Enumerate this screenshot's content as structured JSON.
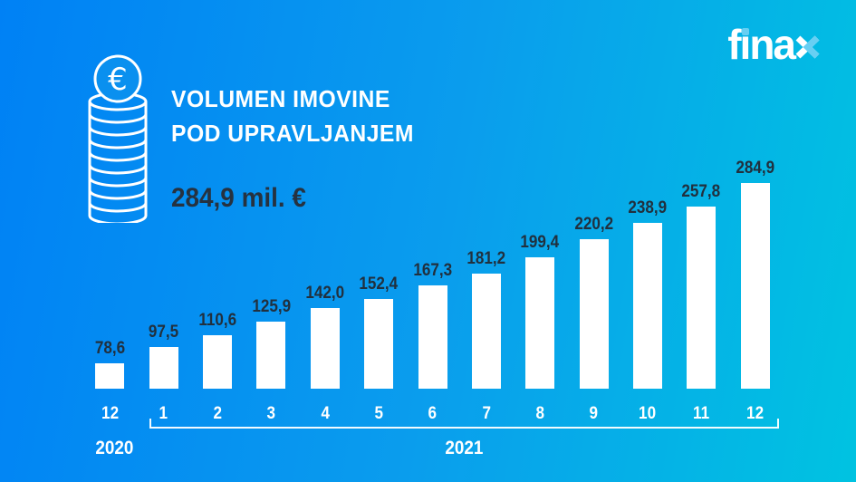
{
  "logo": {
    "word": "finax",
    "parts": {
      "p1": "f",
      "i_stem": "ı",
      "p2": "na",
      "x": "x"
    },
    "accent_color": "#67cff3"
  },
  "header": {
    "title_line1": "VOLUMEN IMOVINE",
    "title_line2": "POD UPRAVLJANJEM",
    "total_label": "284,9 mil. €"
  },
  "colors": {
    "background_left": "#0081f5",
    "background_mid": "#0a9ded",
    "background_right": "#00c3e1",
    "bar_fill": "#ffffff",
    "value_label": "#21303e",
    "total_text": "#263240",
    "axis_text": "#ffffff"
  },
  "chart_data": {
    "type": "bar",
    "title": "VOLUMEN IMOVINE POD UPRAVLJANJEM",
    "unit": "mil. €",
    "categories": [
      "12",
      "1",
      "2",
      "3",
      "4",
      "5",
      "6",
      "7",
      "8",
      "9",
      "10",
      "11",
      "12"
    ],
    "values": [
      78.6,
      97.5,
      110.6,
      125.9,
      142.0,
      152.4,
      167.3,
      181.2,
      199.4,
      220.2,
      238.9,
      257.8,
      284.9
    ],
    "data_labels": [
      "78,6",
      "97,5",
      "110,6",
      "125,9",
      "142,0",
      "152,4",
      "167,3",
      "181,2",
      "199,4",
      "220,2",
      "238,9",
      "257,8",
      "284,9"
    ],
    "year_groups": [
      {
        "label": "2020",
        "span": [
          0,
          0
        ]
      },
      {
        "label": "2021",
        "span": [
          1,
          12
        ]
      }
    ],
    "ylim": [
      50,
      300
    ],
    "grid": false,
    "legend": false,
    "bar_color": "#ffffff",
    "label_color": "#21303e"
  }
}
